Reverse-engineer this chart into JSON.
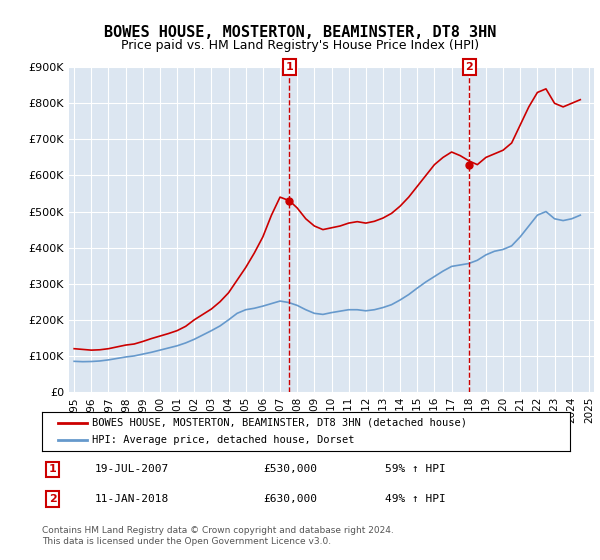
{
  "title": "BOWES HOUSE, MOSTERTON, BEAMINSTER, DT8 3HN",
  "subtitle": "Price paid vs. HM Land Registry's House Price Index (HPI)",
  "title_fontsize": 11,
  "subtitle_fontsize": 9,
  "background_color": "#ffffff",
  "plot_bg_color": "#dce6f1",
  "grid_color": "#ffffff",
  "red_line_color": "#cc0000",
  "blue_line_color": "#6699cc",
  "sale1_x": 2007.55,
  "sale1_y": 530000,
  "sale2_x": 2018.03,
  "sale2_y": 630000,
  "sale1_label": "1",
  "sale2_label": "2",
  "sale1_date": "19-JUL-2007",
  "sale1_price": "£530,000",
  "sale1_hpi": "59% ↑ HPI",
  "sale2_date": "11-JAN-2018",
  "sale2_price": "£630,000",
  "sale2_hpi": "49% ↑ HPI",
  "legend_line1": "BOWES HOUSE, MOSTERTON, BEAMINSTER, DT8 3HN (detached house)",
  "legend_line2": "HPI: Average price, detached house, Dorset",
  "footer": "Contains HM Land Registry data © Crown copyright and database right 2024.\nThis data is licensed under the Open Government Licence v3.0.",
  "ylim": [
    0,
    900000
  ],
  "yticks": [
    0,
    100000,
    200000,
    300000,
    400000,
    500000,
    600000,
    700000,
    800000,
    900000
  ],
  "ytick_labels": [
    "£0",
    "£100K",
    "£200K",
    "£300K",
    "£400K",
    "£500K",
    "£600K",
    "£700K",
    "£800K",
    "£900K"
  ],
  "xtick_years": [
    1995,
    1996,
    1997,
    1998,
    1999,
    2000,
    2001,
    2002,
    2003,
    2004,
    2005,
    2006,
    2007,
    2008,
    2009,
    2010,
    2011,
    2012,
    2013,
    2014,
    2015,
    2016,
    2017,
    2018,
    2019,
    2020,
    2021,
    2022,
    2023,
    2024,
    2025
  ],
  "red_x": [
    1995.0,
    1995.5,
    1996.0,
    1996.5,
    1997.0,
    1997.5,
    1998.0,
    1998.5,
    1999.0,
    1999.5,
    2000.0,
    2000.5,
    2001.0,
    2001.5,
    2002.0,
    2002.5,
    2003.0,
    2003.5,
    2004.0,
    2004.5,
    2005.0,
    2005.5,
    2006.0,
    2006.5,
    2007.0,
    2007.55,
    2008.0,
    2008.5,
    2009.0,
    2009.5,
    2010.0,
    2010.5,
    2011.0,
    2011.5,
    2012.0,
    2012.5,
    2013.0,
    2013.5,
    2014.0,
    2014.5,
    2015.0,
    2015.5,
    2016.0,
    2016.5,
    2017.0,
    2017.5,
    2018.03,
    2018.5,
    2019.0,
    2019.5,
    2020.0,
    2020.5,
    2021.0,
    2021.5,
    2022.0,
    2022.5,
    2023.0,
    2023.5,
    2024.0,
    2024.5
  ],
  "red_y": [
    120000,
    118000,
    116000,
    117000,
    120000,
    125000,
    130000,
    133000,
    140000,
    148000,
    155000,
    162000,
    170000,
    182000,
    200000,
    215000,
    230000,
    250000,
    275000,
    310000,
    345000,
    385000,
    430000,
    490000,
    540000,
    530000,
    510000,
    480000,
    460000,
    450000,
    455000,
    460000,
    468000,
    472000,
    468000,
    473000,
    482000,
    495000,
    515000,
    540000,
    570000,
    600000,
    630000,
    650000,
    665000,
    655000,
    640000,
    630000,
    650000,
    660000,
    670000,
    690000,
    740000,
    790000,
    830000,
    840000,
    800000,
    790000,
    800000,
    810000
  ],
  "blue_x": [
    1995.0,
    1995.5,
    1996.0,
    1996.5,
    1997.0,
    1997.5,
    1998.0,
    1998.5,
    1999.0,
    1999.5,
    2000.0,
    2000.5,
    2001.0,
    2001.5,
    2002.0,
    2002.5,
    2003.0,
    2003.5,
    2004.0,
    2004.5,
    2005.0,
    2005.5,
    2006.0,
    2006.5,
    2007.0,
    2007.5,
    2008.0,
    2008.5,
    2009.0,
    2009.5,
    2010.0,
    2010.5,
    2011.0,
    2011.5,
    2012.0,
    2012.5,
    2013.0,
    2013.5,
    2014.0,
    2014.5,
    2015.0,
    2015.5,
    2016.0,
    2016.5,
    2017.0,
    2017.5,
    2018.0,
    2018.5,
    2019.0,
    2019.5,
    2020.0,
    2020.5,
    2021.0,
    2021.5,
    2022.0,
    2022.5,
    2023.0,
    2023.5,
    2024.0,
    2024.5
  ],
  "blue_y": [
    85000,
    84000,
    84500,
    86000,
    89000,
    93000,
    97000,
    100000,
    105000,
    110000,
    116000,
    122000,
    128000,
    136000,
    146000,
    158000,
    170000,
    183000,
    200000,
    218000,
    228000,
    232000,
    238000,
    245000,
    252000,
    248000,
    240000,
    228000,
    218000,
    215000,
    220000,
    224000,
    228000,
    228000,
    225000,
    228000,
    234000,
    242000,
    255000,
    270000,
    288000,
    305000,
    320000,
    335000,
    348000,
    352000,
    356000,
    365000,
    380000,
    390000,
    395000,
    405000,
    430000,
    460000,
    490000,
    500000,
    480000,
    475000,
    480000,
    490000
  ]
}
